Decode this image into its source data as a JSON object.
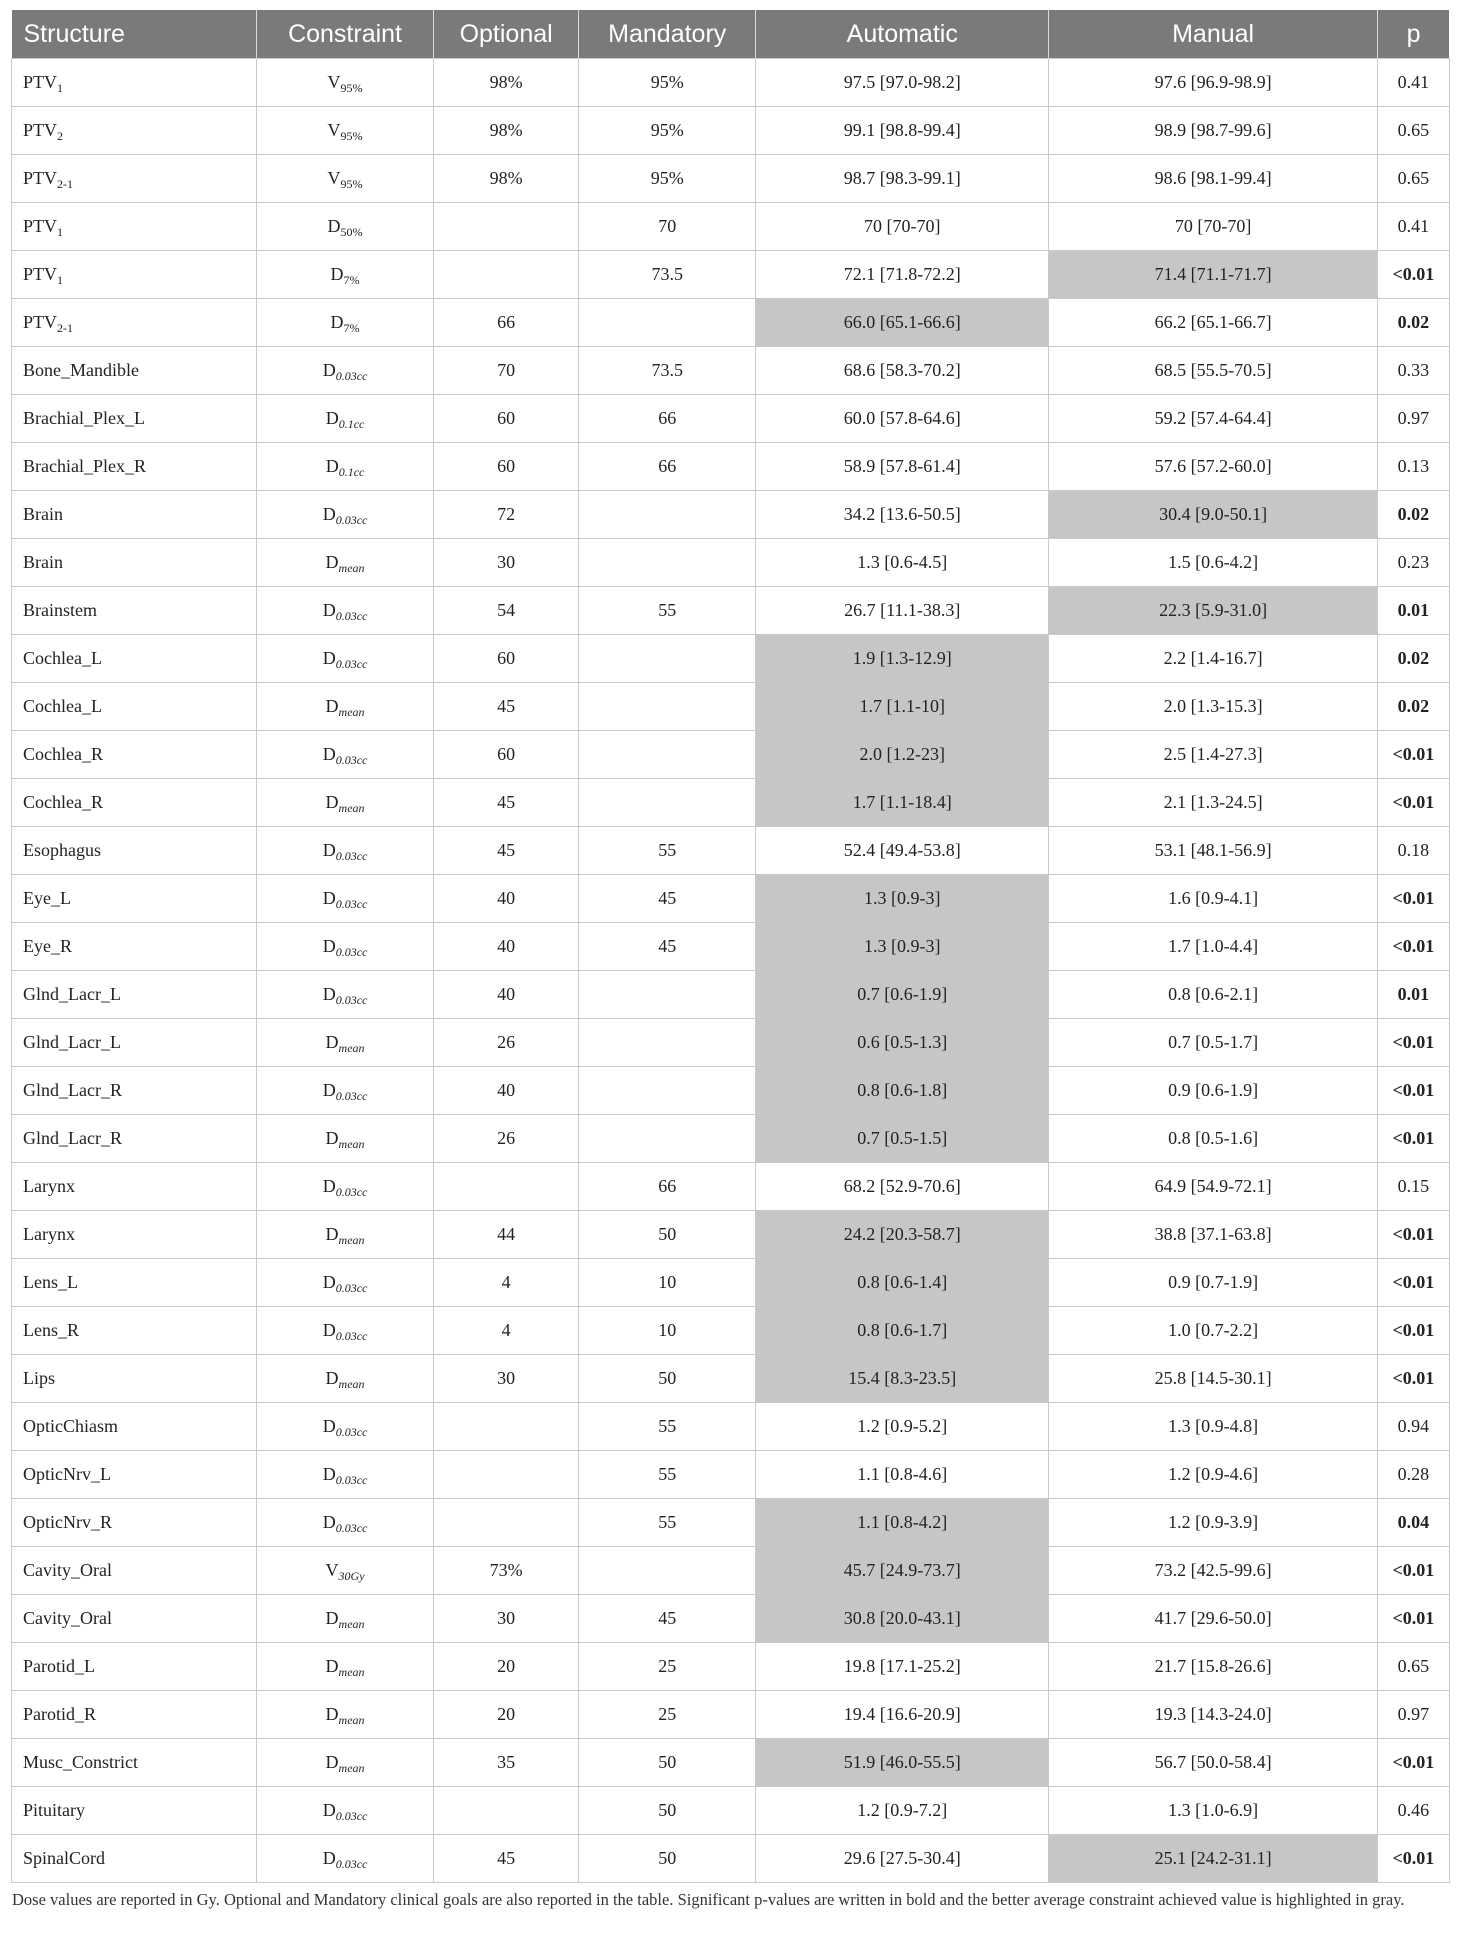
{
  "headers": [
    "Structure",
    "Constraint",
    "Optional",
    "Mandatory",
    "Automatic",
    "Manual",
    "p"
  ],
  "rows": [
    {
      "structure": "PTV",
      "structure_sub": "1",
      "constraint": "V",
      "constraint_sub": "95%",
      "optional": "98%",
      "mandatory": "95%",
      "automatic": "97.5 [97.0-98.2]",
      "manual": "97.6 [96.9-98.9]",
      "p": "0.41",
      "highlight": "",
      "p_bold": false
    },
    {
      "structure": "PTV",
      "structure_sub": "2",
      "constraint": "V",
      "constraint_sub": "95%",
      "optional": "98%",
      "mandatory": "95%",
      "automatic": "99.1 [98.8-99.4]",
      "manual": "98.9 [98.7-99.6]",
      "p": "0.65",
      "highlight": "",
      "p_bold": false
    },
    {
      "structure": "PTV",
      "structure_sub": "2-1",
      "constraint": "V",
      "constraint_sub": "95%",
      "optional": "98%",
      "mandatory": "95%",
      "automatic": "98.7 [98.3-99.1]",
      "manual": "98.6 [98.1-99.4]",
      "p": "0.65",
      "highlight": "",
      "p_bold": false
    },
    {
      "structure": "PTV",
      "structure_sub": "1",
      "constraint": "D",
      "constraint_sub": "50%",
      "optional": "",
      "mandatory": "70",
      "automatic": "70 [70-70]",
      "manual": "70 [70-70]",
      "p": "0.41",
      "highlight": "",
      "p_bold": false
    },
    {
      "structure": "PTV",
      "structure_sub": "1",
      "constraint": "D",
      "constraint_sub": "7%",
      "optional": "",
      "mandatory": "73.5",
      "automatic": "72.1 [71.8-72.2]",
      "manual": "71.4 [71.1-71.7]",
      "p": "<0.01",
      "highlight": "manual",
      "p_bold": true
    },
    {
      "structure": "PTV",
      "structure_sub": "2-1",
      "constraint": "D",
      "constraint_sub": "7%",
      "optional": "66",
      "mandatory": "",
      "automatic": "66.0 [65.1-66.6]",
      "manual": "66.2 [65.1-66.7]",
      "p": "0.02",
      "highlight": "automatic",
      "p_bold": true
    },
    {
      "structure": "Bone_Mandible",
      "structure_sub": "",
      "constraint": "D",
      "constraint_sub": "0.03cc",
      "optional": "70",
      "mandatory": "73.5",
      "automatic": "68.6 [58.3-70.2]",
      "manual": "68.5 [55.5-70.5]",
      "p": "0.33",
      "highlight": "",
      "p_bold": false
    },
    {
      "structure": "Brachial_Plex_L",
      "structure_sub": "",
      "constraint": "D",
      "constraint_sub": "0.1cc",
      "optional": "60",
      "mandatory": "66",
      "automatic": "60.0 [57.8-64.6]",
      "manual": "59.2 [57.4-64.4]",
      "p": "0.97",
      "highlight": "",
      "p_bold": false
    },
    {
      "structure": "Brachial_Plex_R",
      "structure_sub": "",
      "constraint": "D",
      "constraint_sub": "0.1cc",
      "optional": "60",
      "mandatory": "66",
      "automatic": "58.9 [57.8-61.4]",
      "manual": "57.6 [57.2-60.0]",
      "p": "0.13",
      "highlight": "",
      "p_bold": false
    },
    {
      "structure": "Brain",
      "structure_sub": "",
      "constraint": "D",
      "constraint_sub": "0.03cc",
      "optional": "72",
      "mandatory": "",
      "automatic": "34.2 [13.6-50.5]",
      "manual": "30.4 [9.0-50.1]",
      "p": "0.02",
      "highlight": "manual",
      "p_bold": true
    },
    {
      "structure": "Brain",
      "structure_sub": "",
      "constraint": "D",
      "constraint_sub": "mean",
      "optional": "30",
      "mandatory": "",
      "automatic": "1.3 [0.6-4.5]",
      "manual": "1.5 [0.6-4.2]",
      "p": "0.23",
      "highlight": "",
      "p_bold": false
    },
    {
      "structure": "Brainstem",
      "structure_sub": "",
      "constraint": "D",
      "constraint_sub": "0.03cc",
      "optional": "54",
      "mandatory": "55",
      "automatic": "26.7 [11.1-38.3]",
      "manual": "22.3 [5.9-31.0]",
      "p": "0.01",
      "highlight": "manual",
      "p_bold": true
    },
    {
      "structure": "Cochlea_L",
      "structure_sub": "",
      "constraint": "D",
      "constraint_sub": "0.03cc",
      "optional": "60",
      "mandatory": "",
      "automatic": "1.9 [1.3-12.9]",
      "manual": "2.2 [1.4-16.7]",
      "p": "0.02",
      "highlight": "automatic",
      "p_bold": true
    },
    {
      "structure": "Cochlea_L",
      "structure_sub": "",
      "constraint": "D",
      "constraint_sub": "mean",
      "optional": "45",
      "mandatory": "",
      "automatic": "1.7 [1.1-10]",
      "manual": "2.0 [1.3-15.3]",
      "p": "0.02",
      "highlight": "automatic",
      "p_bold": true
    },
    {
      "structure": "Cochlea_R",
      "structure_sub": "",
      "constraint": "D",
      "constraint_sub": "0.03cc",
      "optional": "60",
      "mandatory": "",
      "automatic": "2.0 [1.2-23]",
      "manual": "2.5 [1.4-27.3]",
      "p": "<0.01",
      "highlight": "automatic",
      "p_bold": true
    },
    {
      "structure": "Cochlea_R",
      "structure_sub": "",
      "constraint": "D",
      "constraint_sub": "mean",
      "optional": "45",
      "mandatory": "",
      "automatic": "1.7 [1.1-18.4]",
      "manual": "2.1 [1.3-24.5]",
      "p": "<0.01",
      "highlight": "automatic",
      "p_bold": true
    },
    {
      "structure": "Esophagus",
      "structure_sub": "",
      "constraint": "D",
      "constraint_sub": "0.03cc",
      "optional": "45",
      "mandatory": "55",
      "automatic": "52.4 [49.4-53.8]",
      "manual": "53.1 [48.1-56.9]",
      "p": "0.18",
      "highlight": "",
      "p_bold": false
    },
    {
      "structure": "Eye_L",
      "structure_sub": "",
      "constraint": "D",
      "constraint_sub": "0.03cc",
      "optional": "40",
      "mandatory": "45",
      "automatic": "1.3 [0.9-3]",
      "manual": "1.6 [0.9-4.1]",
      "p": "<0.01",
      "highlight": "automatic",
      "p_bold": true
    },
    {
      "structure": "Eye_R",
      "structure_sub": "",
      "constraint": "D",
      "constraint_sub": "0.03cc",
      "optional": "40",
      "mandatory": "45",
      "automatic": "1.3 [0.9-3]",
      "manual": "1.7 [1.0-4.4]",
      "p": "<0.01",
      "highlight": "automatic",
      "p_bold": true
    },
    {
      "structure": "Glnd_Lacr_L",
      "structure_sub": "",
      "constraint": "D",
      "constraint_sub": "0.03cc",
      "optional": "40",
      "mandatory": "",
      "automatic": "0.7 [0.6-1.9]",
      "manual": "0.8 [0.6-2.1]",
      "p": "0.01",
      "highlight": "automatic",
      "p_bold": true
    },
    {
      "structure": "Glnd_Lacr_L",
      "structure_sub": "",
      "constraint": "D",
      "constraint_sub": "mean",
      "optional": "26",
      "mandatory": "",
      "automatic": "0.6 [0.5-1.3]",
      "manual": "0.7 [0.5-1.7]",
      "p": "<0.01",
      "highlight": "automatic",
      "p_bold": true
    },
    {
      "structure": "Glnd_Lacr_R",
      "structure_sub": "",
      "constraint": "D",
      "constraint_sub": "0.03cc",
      "optional": "40",
      "mandatory": "",
      "automatic": "0.8 [0.6-1.8]",
      "manual": "0.9 [0.6-1.9]",
      "p": "<0.01",
      "highlight": "automatic",
      "p_bold": true
    },
    {
      "structure": "Glnd_Lacr_R",
      "structure_sub": "",
      "constraint": "D",
      "constraint_sub": "mean",
      "optional": "26",
      "mandatory": "",
      "automatic": "0.7 [0.5-1.5]",
      "manual": "0.8 [0.5-1.6]",
      "p": "<0.01",
      "highlight": "automatic",
      "p_bold": true
    },
    {
      "structure": "Larynx",
      "structure_sub": "",
      "constraint": "D",
      "constraint_sub": "0.03cc",
      "optional": "",
      "mandatory": "66",
      "automatic": "68.2 [52.9-70.6]",
      "manual": "64.9 [54.9-72.1]",
      "p": "0.15",
      "highlight": "",
      "p_bold": false
    },
    {
      "structure": "Larynx",
      "structure_sub": "",
      "constraint": "D",
      "constraint_sub": "mean",
      "optional": "44",
      "mandatory": "50",
      "automatic": "24.2 [20.3-58.7]",
      "manual": "38.8 [37.1-63.8]",
      "p": "<0.01",
      "highlight": "automatic",
      "p_bold": true
    },
    {
      "structure": "Lens_L",
      "structure_sub": "",
      "constraint": "D",
      "constraint_sub": "0.03cc",
      "optional": "4",
      "mandatory": "10",
      "automatic": "0.8 [0.6-1.4]",
      "manual": "0.9 [0.7-1.9]",
      "p": "<0.01",
      "highlight": "automatic",
      "p_bold": true
    },
    {
      "structure": "Lens_R",
      "structure_sub": "",
      "constraint": "D",
      "constraint_sub": "0.03cc",
      "optional": "4",
      "mandatory": "10",
      "automatic": "0.8 [0.6-1.7]",
      "manual": "1.0 [0.7-2.2]",
      "p": "<0.01",
      "highlight": "automatic",
      "p_bold": true
    },
    {
      "structure": "Lips",
      "structure_sub": "",
      "constraint": "D",
      "constraint_sub": "mean",
      "optional": "30",
      "mandatory": "50",
      "automatic": "15.4 [8.3-23.5]",
      "manual": "25.8 [14.5-30.1]",
      "p": "<0.01",
      "highlight": "automatic",
      "p_bold": true
    },
    {
      "structure": "OpticChiasm",
      "structure_sub": "",
      "constraint": "D",
      "constraint_sub": "0.03cc",
      "optional": "",
      "mandatory": "55",
      "automatic": "1.2 [0.9-5.2]",
      "manual": "1.3 [0.9-4.8]",
      "p": "0.94",
      "highlight": "",
      "p_bold": false
    },
    {
      "structure": "OpticNrv_L",
      "structure_sub": "",
      "constraint": "D",
      "constraint_sub": "0.03cc",
      "optional": "",
      "mandatory": "55",
      "automatic": "1.1 [0.8-4.6]",
      "manual": "1.2 [0.9-4.6]",
      "p": "0.28",
      "highlight": "",
      "p_bold": false
    },
    {
      "structure": "OpticNrv_R",
      "structure_sub": "",
      "constraint": "D",
      "constraint_sub": "0.03cc",
      "optional": "",
      "mandatory": "55",
      "automatic": "1.1 [0.8-4.2]",
      "manual": "1.2 [0.9-3.9]",
      "p": "0.04",
      "highlight": "automatic",
      "p_bold": true
    },
    {
      "structure": "Cavity_Oral",
      "structure_sub": "",
      "constraint": "V",
      "constraint_sub": "30Gy",
      "optional": "73%",
      "mandatory": "",
      "automatic": "45.7 [24.9-73.7]",
      "manual": "73.2 [42.5-99.6]",
      "p": "<0.01",
      "highlight": "automatic",
      "p_bold": true
    },
    {
      "structure": "Cavity_Oral",
      "structure_sub": "",
      "constraint": "D",
      "constraint_sub": "mean",
      "optional": "30",
      "mandatory": "45",
      "automatic": "30.8 [20.0-43.1]",
      "manual": "41.7 [29.6-50.0]",
      "p": "<0.01",
      "highlight": "automatic",
      "p_bold": true
    },
    {
      "structure": "Parotid_L",
      "structure_sub": "",
      "constraint": "D",
      "constraint_sub": "mean",
      "optional": "20",
      "mandatory": "25",
      "automatic": "19.8 [17.1-25.2]",
      "manual": "21.7 [15.8-26.6]",
      "p": "0.65",
      "highlight": "",
      "p_bold": false
    },
    {
      "structure": "Parotid_R",
      "structure_sub": "",
      "constraint": "D",
      "constraint_sub": "mean",
      "optional": "20",
      "mandatory": "25",
      "automatic": "19.4 [16.6-20.9]",
      "manual": "19.3 [14.3-24.0]",
      "p": "0.97",
      "highlight": "",
      "p_bold": false
    },
    {
      "structure": "Musc_Constrict",
      "structure_sub": "",
      "constraint": "D",
      "constraint_sub": "mean",
      "optional": "35",
      "mandatory": "50",
      "automatic": "51.9 [46.0-55.5]",
      "manual": "56.7 [50.0-58.4]",
      "p": "<0.01",
      "highlight": "automatic",
      "p_bold": true
    },
    {
      "structure": "Pituitary",
      "structure_sub": "",
      "constraint": "D",
      "constraint_sub": "0.03cc",
      "optional": "",
      "mandatory": "50",
      "automatic": "1.2 [0.9-7.2]",
      "manual": "1.3 [1.0-6.9]",
      "p": "0.46",
      "highlight": "",
      "p_bold": false
    },
    {
      "structure": "SpinalCord",
      "structure_sub": "",
      "constraint": "D",
      "constraint_sub": "0.03cc",
      "optional": "45",
      "mandatory": "50",
      "automatic": "29.6 [27.5-30.4]",
      "manual": "25.1 [24.2-31.1]",
      "p": "<0.01",
      "highlight": "manual",
      "p_bold": true
    }
  ],
  "footnote": "Dose values are reported in Gy. Optional and Mandatory clinical goals are also reported in the table. Significant p-values are written in bold and the better average constraint achieved value is highlighted in gray.",
  "colors": {
    "header_bg": "#7a7a7a",
    "highlight_bg": "#c6c6c6",
    "border": "#c9c9c9"
  }
}
